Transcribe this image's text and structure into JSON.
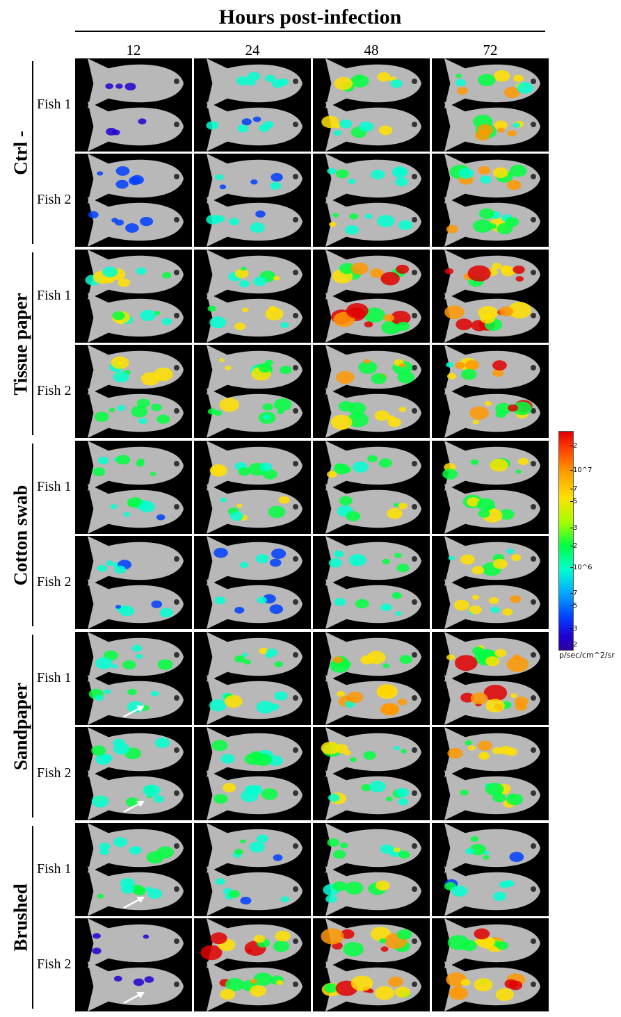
{
  "title": "Hours post-infection",
  "columns": [
    "12",
    "24",
    "48",
    "72"
  ],
  "fish_labels": [
    "Fish 1",
    "Fish 2"
  ],
  "groups": [
    {
      "name": "Ctrl -",
      "intensity": [
        [
          0.05,
          0.35,
          0.55,
          0.75
        ],
        [
          0.2,
          0.3,
          0.55,
          0.7
        ]
      ]
    },
    {
      "name": "Tissue paper",
      "intensity": [
        [
          0.6,
          0.55,
          0.85,
          0.9
        ],
        [
          0.6,
          0.65,
          0.8,
          0.8
        ]
      ]
    },
    {
      "name": "Cotton swab",
      "intensity": [
        [
          0.45,
          0.55,
          0.55,
          0.65
        ],
        [
          0.3,
          0.3,
          0.5,
          0.65
        ]
      ]
    },
    {
      "name": "Sandpaper",
      "intensity": [
        [
          0.5,
          0.55,
          0.75,
          0.9
        ],
        [
          0.5,
          0.55,
          0.6,
          0.7
        ]
      ]
    },
    {
      "name": "Brushed",
      "intensity": [
        [
          0.5,
          0.4,
          0.55,
          0.4
        ],
        [
          0.05,
          0.8,
          0.9,
          0.85
        ]
      ]
    }
  ],
  "arrows": [
    {
      "group": 3,
      "fish": 0,
      "column": 0
    },
    {
      "group": 3,
      "fish": 1,
      "column": 0
    },
    {
      "group": 4,
      "fish": 0,
      "column": 0
    },
    {
      "group": 4,
      "fish": 1,
      "column": 0
    }
  ],
  "colorbar": {
    "ticks": [
      "2",
      "10^7",
      "7",
      "5",
      "3",
      "2",
      "10^6",
      "7",
      "5",
      "3",
      "2"
    ],
    "unit": "p/sec/cm^2/sr",
    "colors": [
      "#e00000",
      "#ff9800",
      "#ffe000",
      "#00ff40",
      "#00ffd0",
      "#0040ff",
      "#2000d0"
    ]
  }
}
